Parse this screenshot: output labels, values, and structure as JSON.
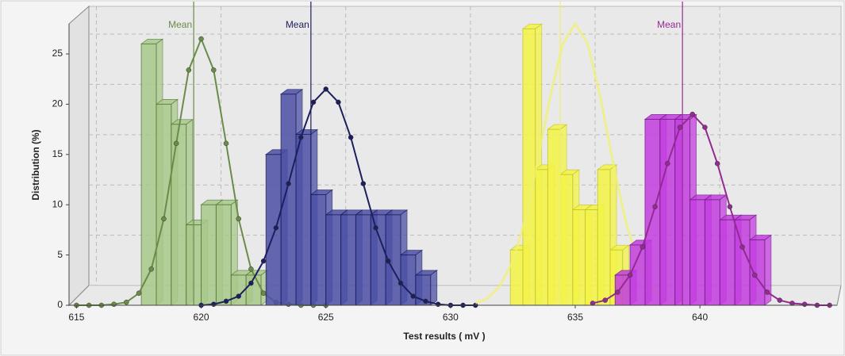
{
  "chart_data": {
    "type": "histogram",
    "xlabel": "Test results ( mV )",
    "ylabel": "Distribution (%)",
    "xlim": [
      614.7,
      645.5
    ],
    "ylim": [
      0,
      28
    ],
    "xticks": [
      615,
      620,
      625,
      630,
      635,
      640
    ],
    "yticks": [
      0,
      5,
      10,
      15,
      20,
      25
    ],
    "grid": true,
    "groups": [
      {
        "color": "#a8c98a",
        "edge_color": "#5f7f42",
        "curve_color": "#6a8c48",
        "markers": true,
        "mean": 619.7,
        "mean_label": "Mean",
        "bins": [
          617.6,
          618.2,
          618.8,
          619.4,
          620.0,
          620.6,
          621.2,
          621.8,
          622.4
        ],
        "values": [
          26,
          20,
          18,
          8,
          10,
          10,
          3,
          3
        ],
        "curve": {
          "x": [
            615,
            615.5,
            616,
            616.5,
            617,
            617.5,
            618,
            618.5,
            619,
            619.5,
            620,
            620.5,
            621,
            621.5,
            622,
            622.5,
            623,
            623.5,
            624,
            624.5,
            625
          ],
          "y": [
            0,
            0,
            0,
            0.1,
            0.3,
            1.2,
            3.6,
            8.6,
            16.1,
            23.4,
            26.5,
            23.4,
            16.1,
            8.6,
            3.6,
            1.2,
            0.3,
            0.1,
            0,
            0,
            0
          ]
        }
      },
      {
        "color": "#4c50a6",
        "edge_color": "#1e2060",
        "curve_color": "#1c1f5e",
        "markers": true,
        "mean": 624.4,
        "mean_label": "Mean",
        "bins": [
          622.6,
          623.2,
          623.8,
          624.4,
          625.0,
          625.6,
          626.2,
          626.8,
          627.4,
          628.0,
          628.6,
          629.2
        ],
        "values": [
          15,
          21,
          17,
          11,
          9,
          9,
          9,
          9,
          9,
          5,
          3
        ],
        "curve": {
          "x": [
            620,
            620.5,
            621,
            621.5,
            622,
            622.5,
            623,
            623.5,
            624,
            624.5,
            625,
            625.5,
            626,
            626.5,
            627,
            627.5,
            628,
            628.5,
            629,
            629.5,
            630,
            630.5,
            631
          ],
          "y": [
            0,
            0.1,
            0.4,
            0.9,
            2.2,
            4.4,
            7.7,
            12.1,
            16.7,
            20.2,
            21.5,
            20.2,
            16.7,
            12.1,
            7.7,
            4.4,
            2.2,
            0.9,
            0.4,
            0.1,
            0,
            0,
            0
          ]
        }
      },
      {
        "color": "#f4f445",
        "edge_color": "#c9c92a",
        "curve_color": "#f0f070",
        "markers": false,
        "mean": 634.4,
        "bins": [
          632.4,
          632.9,
          633.4,
          633.9,
          634.4,
          634.9,
          635.4,
          635.9,
          636.4,
          636.9
        ],
        "values": [
          5.5,
          27.5,
          13.5,
          17.5,
          13,
          9.5,
          9.5,
          13.5,
          5.5
        ],
        "curve": {
          "x": [
            631,
            631.5,
            632,
            632.5,
            633,
            633.5,
            634,
            634.5,
            635,
            635.5,
            636,
            636.5,
            637,
            637.5,
            638,
            638.5,
            639
          ],
          "y": [
            0.2,
            0.7,
            2.0,
            4.4,
            8.6,
            14.4,
            20.8,
            26.0,
            28,
            26.0,
            20.8,
            14.4,
            8.6,
            4.4,
            2.0,
            0.7,
            0.2
          ]
        }
      },
      {
        "color": "#c43de0",
        "edge_color": "#7a1f8e",
        "curve_color": "#942a94",
        "markers": true,
        "mean": 639.3,
        "mean_label": "Mean",
        "bins": [
          636.6,
          637.2,
          637.8,
          638.4,
          639.0,
          639.6,
          640.2,
          640.8,
          641.4,
          642.0,
          642.6
        ],
        "values": [
          3,
          6,
          18.5,
          18.5,
          18.5,
          10.5,
          10.5,
          8.5,
          8.5,
          6.5
        ],
        "curve": {
          "x": [
            635.7,
            636.2,
            636.7,
            637.2,
            637.7,
            638.2,
            638.7,
            639.2,
            639.7,
            640.2,
            640.7,
            641.2,
            641.7,
            642.2,
            642.7,
            643.2,
            643.7,
            644.2,
            644.7,
            645.2
          ],
          "y": [
            0.2,
            0.5,
            1.3,
            3.0,
            5.8,
            9.8,
            14.1,
            17.7,
            19,
            17.7,
            14.1,
            9.8,
            5.8,
            3.0,
            1.3,
            0.5,
            0.2,
            0.1,
            0,
            0
          ]
        }
      }
    ]
  }
}
